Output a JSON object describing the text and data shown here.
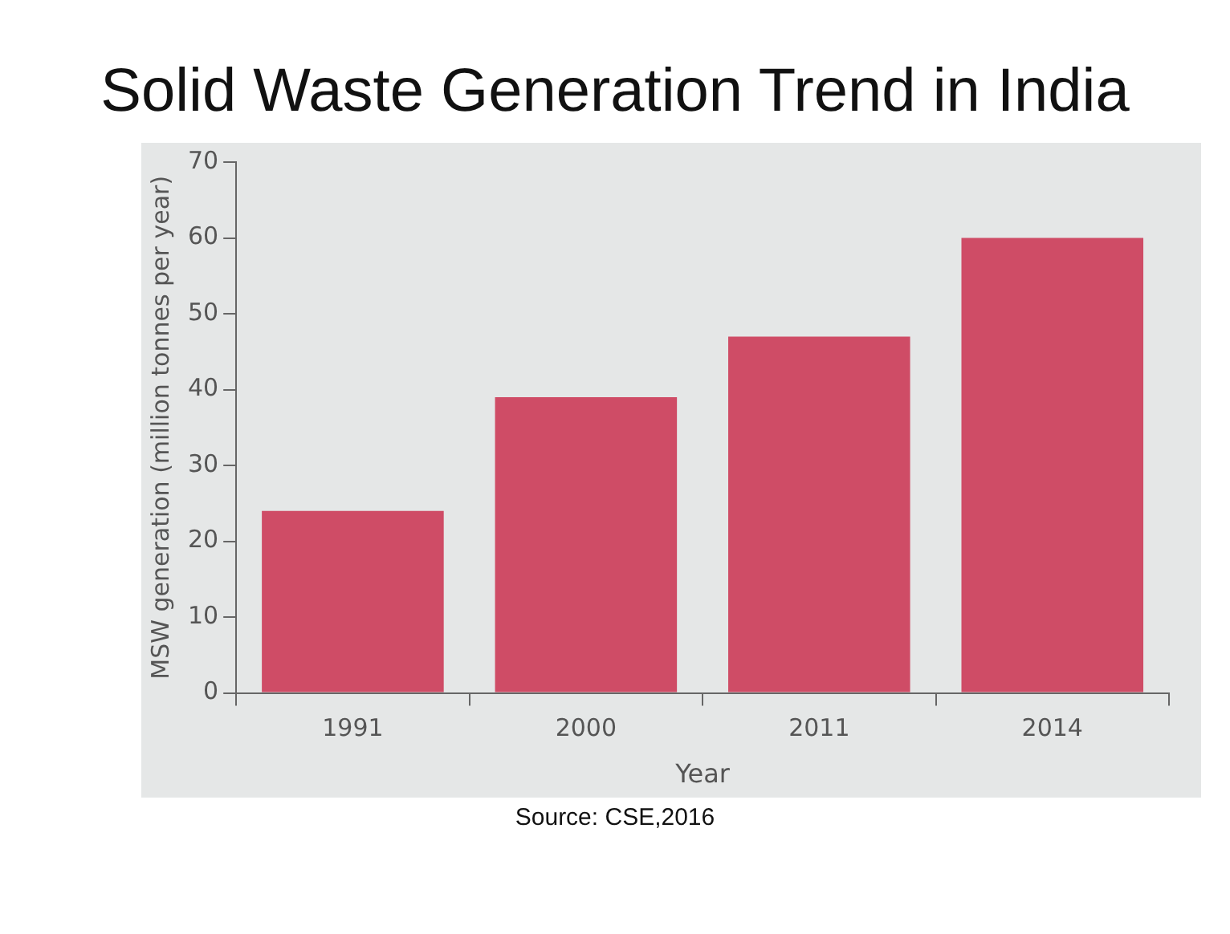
{
  "chart_data": {
    "type": "bar",
    "title": "Solid Waste Generation Trend in India",
    "xlabel": "Year",
    "ylabel": "MSW generation (million tonnes per year)",
    "categories": [
      "1991",
      "2000",
      "2011",
      "2014"
    ],
    "values": [
      24,
      39,
      47,
      60
    ],
    "color": "#cf4c66",
    "ylim": [
      0,
      70
    ],
    "yticks": [
      0,
      10,
      20,
      30,
      40,
      50,
      60,
      70
    ],
    "grid": false,
    "legend": false,
    "annotations": [
      "Source: CSE,2016"
    ]
  }
}
